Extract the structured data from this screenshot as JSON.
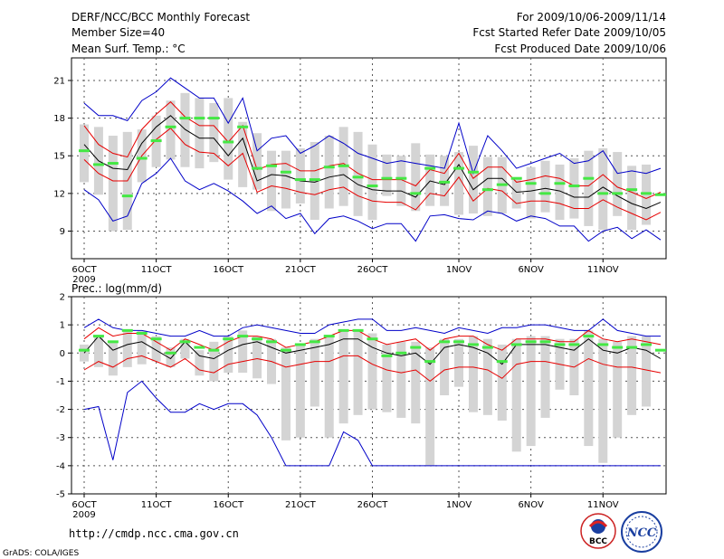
{
  "header": {
    "title": "DERF/NCC/BCC Monthly Forecast",
    "member_size": "Member Size=40",
    "variable": "Mean Surf. Temp.: °C",
    "period": "For 2009/10/06-2009/11/14",
    "refer_date": "Fcst Started Refer Date 2009/10/05",
    "produced_date": "Fcst Produced Date 2009/10/06"
  },
  "footer": {
    "url": "http://cmdp.ncc.cma.gov.cn",
    "credit": "GrADS: COLA/IGES",
    "logo_bcc": "BCC",
    "logo_ncc": "NCC"
  },
  "colors": {
    "spread": "#d4d4d4",
    "envelope_max": "#0000c8",
    "envelope_band": "#e60000",
    "ensemble_mean": "#000000",
    "observation": "#44e844",
    "grid": "#555555"
  },
  "chart_data": [
    {
      "type": "box",
      "title": "Mean Surf. Temp.: °C",
      "xlabel": "",
      "ylabel": "°C",
      "x_start_date": "2009-10-06",
      "days": 40,
      "xticks": [
        {
          "day": 0,
          "label": "6OCT"
        },
        {
          "day": 5,
          "label": "11OCT"
        },
        {
          "day": 10,
          "label": "16OCT"
        },
        {
          "day": 15,
          "label": "21OCT"
        },
        {
          "day": 20,
          "label": "26OCT"
        },
        {
          "day": 26,
          "label": "1NOV"
        },
        {
          "day": 31,
          "label": "6NOV"
        },
        {
          "day": 36,
          "label": "11NOV"
        }
      ],
      "year_label": "2009",
      "yticks": [
        9,
        12,
        15,
        18,
        21
      ],
      "ylim": [
        6.8,
        22.8
      ],
      "series": [
        {
          "name": "member max",
          "values": [
            19.2,
            18.2,
            18.2,
            17.8,
            19.4,
            20.1,
            21.2,
            20.4,
            19.6,
            19.6,
            17.6,
            19.6,
            15.4,
            16.4,
            16.6,
            15.2,
            15.8,
            16.6,
            16.0,
            15.2,
            14.8,
            14.4,
            14.6,
            14.4,
            14.2,
            14.0,
            17.6,
            13.6,
            16.6,
            15.4,
            14.0,
            14.4,
            14.8,
            15.2,
            14.4,
            14.6,
            15.4,
            13.6,
            13.8,
            13.6,
            14.0
          ]
        },
        {
          "name": "member min",
          "values": [
            12.3,
            11.5,
            9.8,
            10.2,
            12.8,
            13.6,
            14.8,
            13.0,
            12.3,
            12.8,
            12.2,
            11.4,
            10.4,
            11.0,
            10.0,
            10.4,
            8.8,
            10.0,
            10.2,
            9.8,
            9.2,
            9.6,
            9.6,
            8.2,
            10.2,
            10.3,
            10.0,
            9.9,
            10.6,
            10.4,
            9.8,
            10.2,
            10.0,
            9.4,
            9.4,
            8.2,
            9.0,
            9.3,
            8.4,
            9.1,
            8.3
          ]
        },
        {
          "name": "upper band",
          "values": [
            17.4,
            15.9,
            15.2,
            14.9,
            17.1,
            18.3,
            19.3,
            18.1,
            17.4,
            17.4,
            16.1,
            17.4,
            13.9,
            14.3,
            14.4,
            13.8,
            13.8,
            14.2,
            14.4,
            13.6,
            13.1,
            13.1,
            13.1,
            12.6,
            13.9,
            13.6,
            15.2,
            13.2,
            14.1,
            14.1,
            12.9,
            13.1,
            13.4,
            13.2,
            12.6,
            12.6,
            13.5,
            12.5,
            12.1,
            11.6,
            12.1
          ]
        },
        {
          "name": "lower band",
          "values": [
            14.7,
            13.6,
            13.0,
            13.0,
            15.0,
            16.3,
            17.2,
            15.9,
            15.3,
            15.2,
            14.2,
            15.2,
            12.1,
            12.6,
            12.4,
            12.1,
            11.9,
            12.3,
            12.5,
            11.8,
            11.4,
            11.3,
            11.3,
            10.7,
            12.0,
            11.8,
            13.3,
            11.4,
            12.4,
            12.2,
            11.2,
            11.4,
            11.4,
            11.2,
            10.8,
            10.8,
            11.5,
            10.9,
            10.4,
            9.9,
            10.5
          ]
        },
        {
          "name": "ensemble mean",
          "values": [
            15.9,
            14.6,
            14.0,
            13.9,
            16.0,
            17.3,
            18.2,
            17.1,
            16.4,
            16.4,
            15.0,
            16.4,
            13.0,
            13.5,
            13.4,
            13.0,
            12.9,
            13.3,
            13.5,
            12.7,
            12.3,
            12.2,
            12.2,
            11.7,
            13.0,
            12.7,
            14.3,
            12.3,
            13.2,
            13.2,
            12.1,
            12.2,
            12.4,
            12.2,
            11.7,
            11.7,
            12.5,
            11.8,
            11.2,
            10.8,
            11.3
          ]
        },
        {
          "name": "spread top",
          "values": [
            17.5,
            17.3,
            16.6,
            16.9,
            17.1,
            18.2,
            19.4,
            20.0,
            19.6,
            19.2,
            19.6,
            17.7,
            16.8,
            15.4,
            15.4,
            15.6,
            16.1,
            16.6,
            17.3,
            16.9,
            15.9,
            15.1,
            15.0,
            16.0,
            15.1,
            15.0,
            15.3,
            15.8,
            14.9,
            14.9,
            13.1,
            14.1,
            14.6,
            14.3,
            14.8,
            15.4,
            15.6,
            15.3,
            14.2,
            14.3,
            14.6
          ]
        },
        {
          "name": "spread bottom",
          "values": [
            12.9,
            11.9,
            9.0,
            9.1,
            12.9,
            14.1,
            14.7,
            14.1,
            14.0,
            14.5,
            13.1,
            12.5,
            12.3,
            10.6,
            10.8,
            11.2,
            9.9,
            10.8,
            11.0,
            10.2,
            9.9,
            11.8,
            11.0,
            10.6,
            11.0,
            11.0,
            10.3,
            10.4,
            10.2,
            10.4,
            10.8,
            10.0,
            10.5,
            9.9,
            10.0,
            9.4,
            9.1,
            10.2,
            9.1,
            9.5,
            9.5
          ]
        },
        {
          "name": "observation",
          "values": [
            15.4,
            14.3,
            14.4,
            11.8,
            14.8,
            16.2,
            17.3,
            18.0,
            18.0,
            18.0,
            16.1,
            17.3,
            14.0,
            14.2,
            13.7,
            13.1,
            13.1,
            14.1,
            14.2,
            13.3,
            12.6,
            13.2,
            13.2,
            12.0,
            14.0,
            12.9,
            14.0,
            13.7,
            12.3,
            12.7,
            13.2,
            12.8,
            12.0,
            12.8,
            12.6,
            13.2,
            12.0,
            12.0,
            12.3,
            12.0,
            11.9
          ]
        }
      ]
    },
    {
      "type": "box",
      "title": "Prec.: log(mm/d)",
      "xlabel": "",
      "ylabel": "log(mm/d)",
      "x_start_date": "2009-10-06",
      "days": 40,
      "xticks": [
        {
          "day": 0,
          "label": "6OCT"
        },
        {
          "day": 5,
          "label": "11OCT"
        },
        {
          "day": 10,
          "label": "16OCT"
        },
        {
          "day": 15,
          "label": "21OCT"
        },
        {
          "day": 20,
          "label": "26OCT"
        },
        {
          "day": 26,
          "label": "1NOV"
        },
        {
          "day": 31,
          "label": "6NOV"
        },
        {
          "day": 36,
          "label": "11NOV"
        }
      ],
      "year_label": "2009",
      "yticks": [
        -5,
        -4,
        -3,
        -2,
        -1,
        0,
        1,
        2
      ],
      "ylim": [
        -5,
        2
      ],
      "series": [
        {
          "name": "member max",
          "values": [
            0.9,
            1.2,
            0.9,
            0.8,
            0.8,
            0.7,
            0.6,
            0.6,
            0.8,
            0.6,
            0.6,
            0.9,
            1.0,
            0.9,
            0.8,
            0.7,
            0.7,
            1.0,
            1.1,
            1.2,
            1.2,
            0.8,
            0.8,
            0.9,
            0.8,
            0.7,
            0.9,
            0.8,
            0.7,
            0.9,
            0.9,
            1.0,
            1.0,
            0.9,
            0.8,
            0.8,
            1.2,
            0.8,
            0.7,
            0.6,
            0.6
          ]
        },
        {
          "name": "member min",
          "values": [
            -2.0,
            -1.9,
            -3.8,
            -1.4,
            -1.0,
            -1.6,
            -2.1,
            -2.1,
            -1.8,
            -2.0,
            -1.8,
            -1.8,
            -2.2,
            -3.0,
            -4.0,
            -4.0,
            -4.0,
            -4.0,
            -2.8,
            -3.1,
            -4.0,
            -4.0,
            -4.0,
            -4.0,
            -4.0,
            -4.0,
            -4.0,
            -4.0,
            -4.0,
            -4.0,
            -4.0,
            -4.0,
            -4.0,
            -4.0,
            -4.0,
            -4.0,
            -4.0,
            -4.0,
            -4.0,
            -4.0,
            -4.0
          ]
        },
        {
          "name": "upper band",
          "values": [
            0.5,
            0.9,
            0.6,
            0.7,
            0.7,
            0.4,
            0.1,
            0.5,
            0.3,
            0.1,
            0.4,
            0.6,
            0.6,
            0.5,
            0.2,
            0.3,
            0.4,
            0.6,
            0.8,
            0.8,
            0.5,
            0.3,
            0.4,
            0.5,
            0.1,
            0.5,
            0.6,
            0.6,
            0.3,
            0.1,
            0.5,
            0.5,
            0.5,
            0.4,
            0.4,
            0.8,
            0.5,
            0.4,
            0.5,
            0.4,
            0.3
          ]
        },
        {
          "name": "lower band",
          "values": [
            -0.6,
            -0.3,
            -0.5,
            -0.2,
            -0.1,
            -0.3,
            -0.5,
            -0.2,
            -0.6,
            -0.7,
            -0.4,
            -0.3,
            -0.2,
            -0.3,
            -0.5,
            -0.4,
            -0.3,
            -0.3,
            -0.1,
            -0.1,
            -0.4,
            -0.6,
            -0.7,
            -0.6,
            -1.0,
            -0.6,
            -0.5,
            -0.5,
            -0.6,
            -0.9,
            -0.4,
            -0.3,
            -0.3,
            -0.4,
            -0.5,
            -0.2,
            -0.4,
            -0.5,
            -0.5,
            -0.6,
            -0.7
          ]
        },
        {
          "name": "ensemble mean",
          "values": [
            0.0,
            0.6,
            0.1,
            0.3,
            0.4,
            0.1,
            -0.2,
            0.4,
            -0.1,
            -0.2,
            0.1,
            0.3,
            0.4,
            0.2,
            0.0,
            0.1,
            0.2,
            0.3,
            0.5,
            0.5,
            0.2,
            0.0,
            -0.1,
            0.0,
            -0.4,
            0.2,
            0.3,
            0.2,
            0.0,
            -0.4,
            0.3,
            0.3,
            0.3,
            0.2,
            0.1,
            0.5,
            0.1,
            0.0,
            0.2,
            0.1,
            -0.2
          ]
        },
        {
          "name": "spread top",
          "values": [
            0.3,
            0.6,
            0.4,
            0.8,
            0.8,
            0.6,
            0.2,
            0.5,
            0.1,
            0.4,
            0.6,
            0.8,
            0.6,
            0.5,
            0.2,
            0.3,
            0.5,
            0.6,
            0.8,
            0.8,
            0.7,
            0.3,
            0.4,
            0.4,
            0.2,
            0.5,
            0.5,
            0.6,
            0.5,
            0.3,
            0.5,
            0.6,
            0.6,
            0.5,
            0.5,
            0.8,
            0.5,
            0.4,
            0.6,
            0.6,
            0.5
          ]
        },
        {
          "name": "spread bottom",
          "values": [
            -0.3,
            -0.5,
            -0.8,
            -0.5,
            -0.4,
            -0.3,
            -0.5,
            -0.2,
            -0.8,
            -1.0,
            -0.7,
            -0.7,
            -0.9,
            -1.1,
            -3.1,
            -3.0,
            -1.9,
            -3.0,
            -2.5,
            -2.2,
            -2.0,
            -2.1,
            -2.3,
            -2.5,
            -4.0,
            -1.5,
            -1.2,
            -2.1,
            -2.2,
            -2.4,
            -3.5,
            -3.3,
            -2.3,
            -1.3,
            -1.5,
            -3.3,
            -3.9,
            -3.0,
            -2.2,
            -1.9,
            -1.9
          ]
        },
        {
          "name": "observation",
          "values": [
            0.1,
            0.6,
            0.4,
            0.8,
            0.7,
            0.5,
            0.0,
            0.4,
            0.2,
            0.1,
            0.5,
            0.6,
            0.5,
            0.4,
            0.1,
            0.3,
            0.4,
            0.6,
            0.8,
            0.8,
            0.5,
            -0.1,
            0.0,
            0.2,
            -0.3,
            0.4,
            0.4,
            0.3,
            0.2,
            -0.3,
            0.3,
            0.4,
            0.4,
            0.3,
            0.3,
            0.6,
            0.3,
            0.2,
            0.2,
            0.3,
            0.1
          ]
        }
      ]
    }
  ]
}
